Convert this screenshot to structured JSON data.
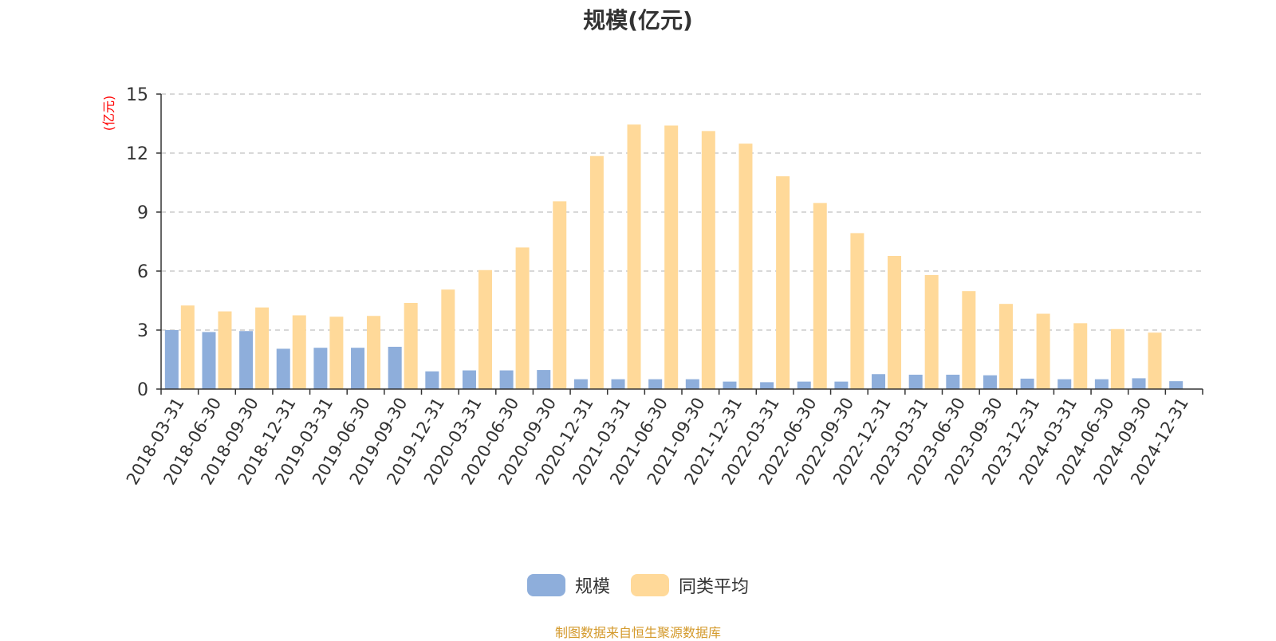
{
  "title": "规模(亿元)",
  "source_note": "制图数据来自恒生聚源数据库",
  "colors": {
    "scale": "#8eaedb",
    "peer_avg": "#ffd999",
    "ylabel": "#ff0000",
    "source": "#d49a2c"
  },
  "legend": [
    {
      "label": "规模",
      "color": "#8eaedb"
    },
    {
      "label": "同类平均",
      "color": "#ffd999"
    }
  ],
  "chart_data": {
    "type": "bar",
    "title": "规模(亿元)",
    "ylabel": "(亿元)",
    "xlabel": "",
    "ylim": [
      0,
      15
    ],
    "yticks": [
      0,
      3,
      6,
      9,
      12,
      15
    ],
    "grid": true,
    "legend_position": "bottom",
    "categories": [
      "2018-03-31",
      "2018-06-30",
      "2018-09-30",
      "2018-12-31",
      "2019-03-31",
      "2019-06-30",
      "2019-09-30",
      "2019-12-31",
      "2020-03-31",
      "2020-06-30",
      "2020-09-30",
      "2020-12-31",
      "2021-03-31",
      "2021-06-30",
      "2021-09-30",
      "2021-12-31",
      "2022-03-31",
      "2022-06-30",
      "2022-09-30",
      "2022-12-31",
      "2023-03-31",
      "2023-06-30",
      "2023-09-30",
      "2023-12-31",
      "2024-03-31",
      "2024-06-30",
      "2024-09-30",
      "2024-12-31"
    ],
    "series": [
      {
        "name": "规模",
        "values": [
          3.0,
          2.9,
          2.95,
          2.05,
          2.1,
          2.1,
          2.15,
          0.9,
          0.95,
          0.95,
          0.97,
          0.5,
          0.5,
          0.5,
          0.5,
          0.38,
          0.35,
          0.38,
          0.38,
          0.76,
          0.73,
          0.73,
          0.7,
          0.53,
          0.5,
          0.5,
          0.55,
          0.4
        ]
      },
      {
        "name": "同类平均",
        "values": [
          4.25,
          3.95,
          4.15,
          3.75,
          3.68,
          3.72,
          4.38,
          5.06,
          6.05,
          7.2,
          9.55,
          11.85,
          13.45,
          13.4,
          13.12,
          12.48,
          10.82,
          9.46,
          7.93,
          6.77,
          5.8,
          4.98,
          4.33,
          3.83,
          3.35,
          3.05,
          2.87,
          null
        ]
      }
    ]
  }
}
